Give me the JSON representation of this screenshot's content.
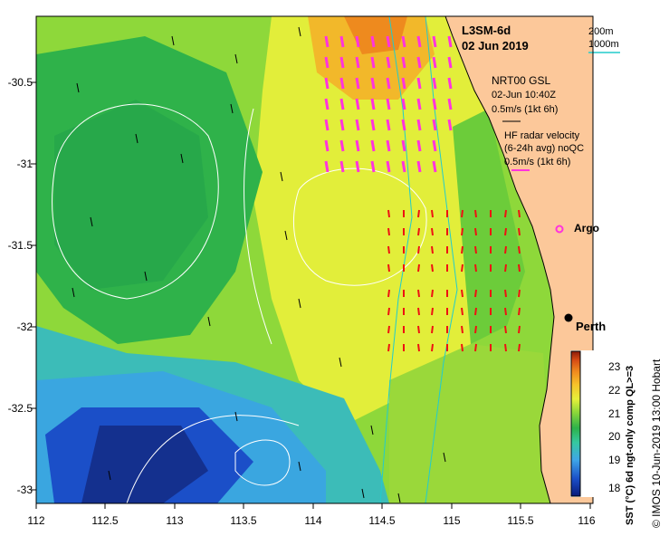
{
  "product": "L3SM-6d",
  "date": "02 Jun 2019",
  "scale": {
    "depth1": "200m",
    "depth2": "1000m"
  },
  "nrt": {
    "title": "NRT00 GSL",
    "time": "02-Jun 10:40Z",
    "speed": "0.5m/s (1kt 6h)"
  },
  "hf": {
    "title": "HF radar velocity",
    "avg": "(6-24h avg) noQC",
    "speed": "0.5m/s (1kt 6h)"
  },
  "argo_label": "Argo",
  "city_label": "Perth",
  "y_ticks": [
    "-30.5",
    "-31",
    "-31.5",
    "-32",
    "-32.5",
    "-33"
  ],
  "x_ticks": [
    "112",
    "112.5",
    "113",
    "113.5",
    "114",
    "114.5",
    "115",
    "115.5",
    "116"
  ],
  "colorbar": {
    "ticks": [
      "18",
      "19",
      "20",
      "21",
      "22",
      "23"
    ],
    "label": "SST (°C) 6d ngt-only comp QL>=3",
    "colors": [
      "#0a1a7a",
      "#1b4fc8",
      "#3fa6e8",
      "#36c8a0",
      "#2db24a",
      "#8ed83a",
      "#e6f03a",
      "#f6c22a",
      "#f08a1e",
      "#d64a14",
      "#8a1a0a"
    ]
  },
  "credit": "© IMOS 10-Jun-2019 13:00 Hobart",
  "colors": {
    "land": "#fcc89a",
    "magenta": "#ff33dd",
    "red": "#ee1111",
    "cyan": "#22cccc"
  }
}
